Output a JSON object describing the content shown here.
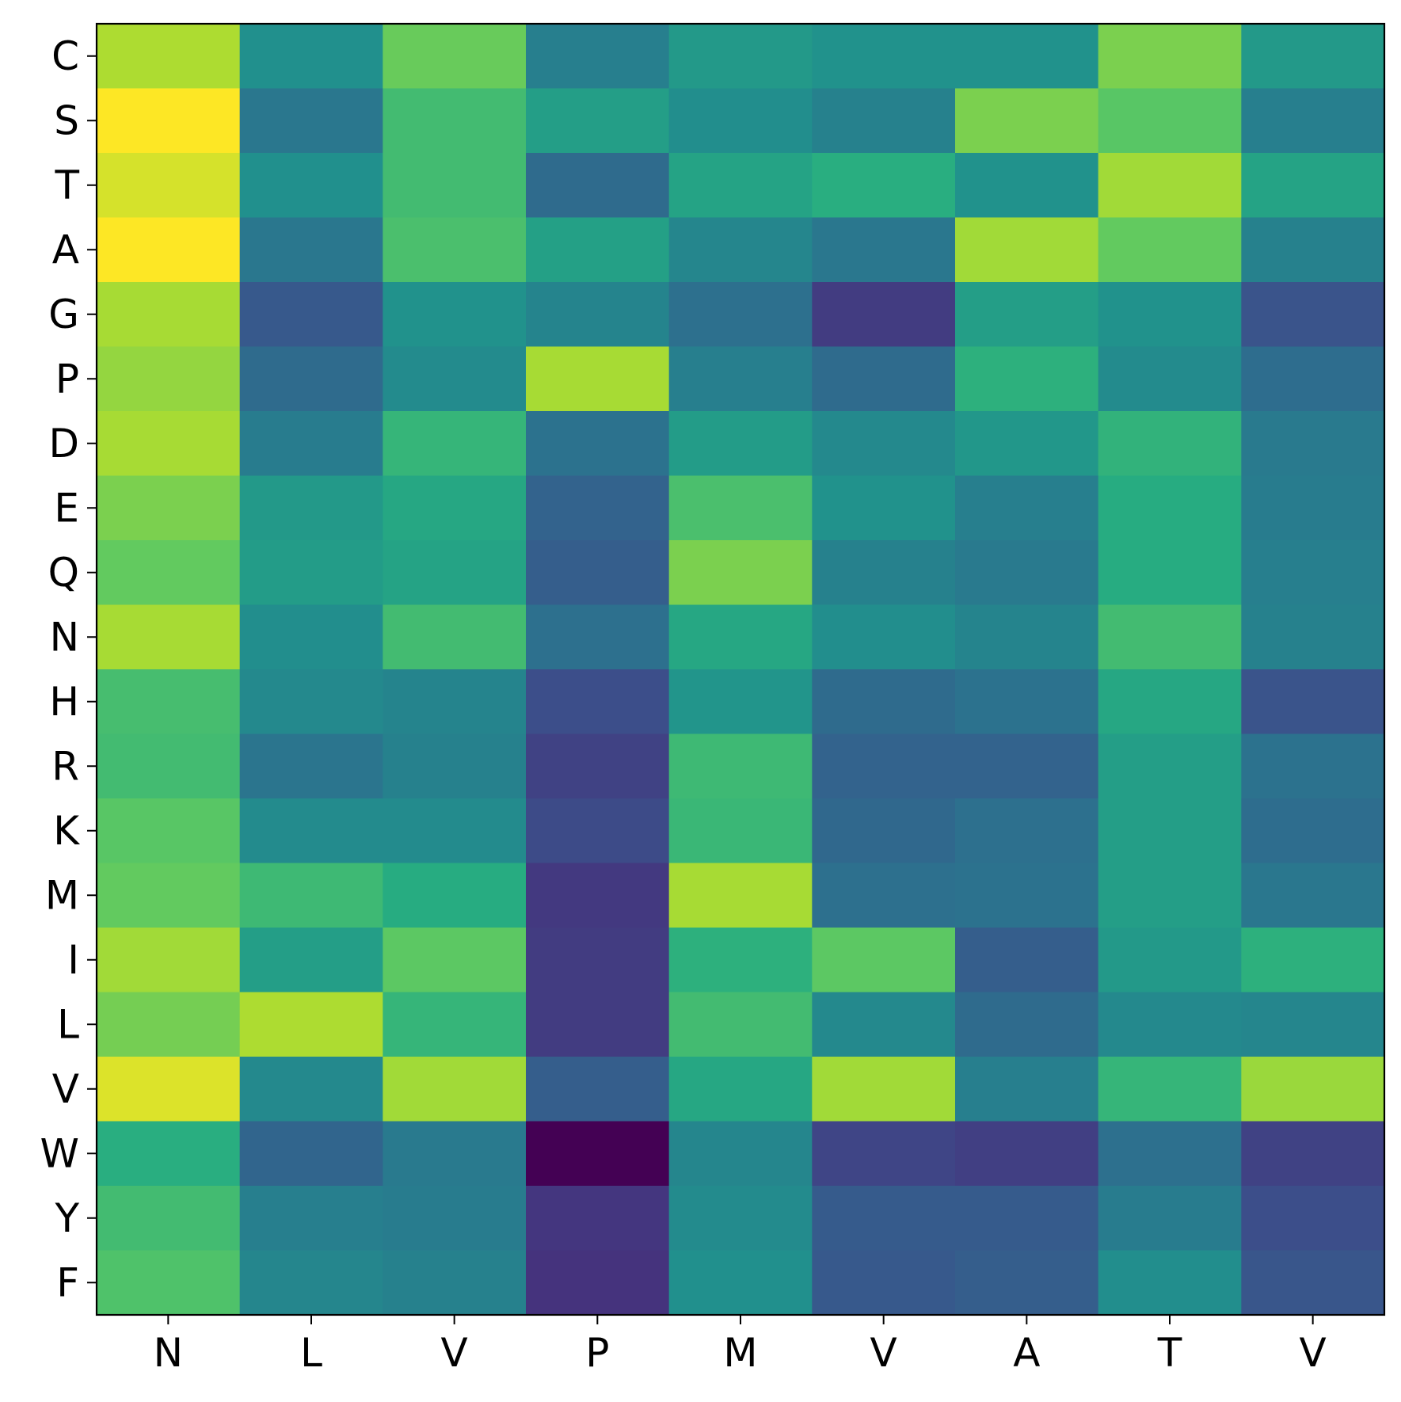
{
  "chart_data": {
    "type": "heatmap",
    "colormap": "viridis",
    "x_labels": [
      "N",
      "L",
      "V",
      "P",
      "M",
      "V",
      "A",
      "T",
      "V"
    ],
    "y_labels": [
      "C",
      "S",
      "T",
      "A",
      "G",
      "P",
      "D",
      "E",
      "Q",
      "N",
      "H",
      "R",
      "K",
      "M",
      "I",
      "L",
      "V",
      "W",
      "Y",
      "F"
    ],
    "value_scale": "normalized 0-1 (no colorbar shown)",
    "values": [
      [
        0.88,
        0.5,
        0.77,
        0.43,
        0.54,
        0.51,
        0.51,
        0.8,
        0.54
      ],
      [
        1.0,
        0.4,
        0.69,
        0.56,
        0.49,
        0.44,
        0.8,
        0.74,
        0.43
      ],
      [
        0.94,
        0.5,
        0.69,
        0.35,
        0.58,
        0.63,
        0.51,
        0.86,
        0.58
      ],
      [
        1.0,
        0.4,
        0.71,
        0.57,
        0.46,
        0.4,
        0.86,
        0.76,
        0.44
      ],
      [
        0.87,
        0.28,
        0.51,
        0.45,
        0.37,
        0.18,
        0.56,
        0.51,
        0.26
      ],
      [
        0.84,
        0.35,
        0.48,
        0.87,
        0.43,
        0.35,
        0.64,
        0.48,
        0.36
      ],
      [
        0.87,
        0.42,
        0.66,
        0.38,
        0.55,
        0.47,
        0.53,
        0.65,
        0.41
      ],
      [
        0.8,
        0.54,
        0.6,
        0.32,
        0.71,
        0.51,
        0.43,
        0.62,
        0.42
      ],
      [
        0.76,
        0.55,
        0.58,
        0.3,
        0.8,
        0.44,
        0.41,
        0.62,
        0.43
      ],
      [
        0.87,
        0.49,
        0.69,
        0.37,
        0.6,
        0.49,
        0.45,
        0.69,
        0.44
      ],
      [
        0.7,
        0.47,
        0.45,
        0.24,
        0.52,
        0.35,
        0.38,
        0.6,
        0.26
      ],
      [
        0.69,
        0.39,
        0.44,
        0.2,
        0.68,
        0.32,
        0.32,
        0.56,
        0.38
      ],
      [
        0.74,
        0.48,
        0.48,
        0.23,
        0.67,
        0.34,
        0.37,
        0.56,
        0.36
      ],
      [
        0.76,
        0.68,
        0.62,
        0.17,
        0.87,
        0.37,
        0.38,
        0.56,
        0.4
      ],
      [
        0.86,
        0.56,
        0.75,
        0.18,
        0.64,
        0.75,
        0.3,
        0.54,
        0.64
      ],
      [
        0.79,
        0.88,
        0.66,
        0.18,
        0.69,
        0.47,
        0.35,
        0.47,
        0.46
      ],
      [
        0.95,
        0.47,
        0.86,
        0.3,
        0.6,
        0.86,
        0.43,
        0.66,
        0.85
      ],
      [
        0.63,
        0.33,
        0.41,
        0.0,
        0.46,
        0.21,
        0.19,
        0.37,
        0.2
      ],
      [
        0.69,
        0.43,
        0.42,
        0.16,
        0.48,
        0.29,
        0.29,
        0.42,
        0.24
      ],
      [
        0.72,
        0.46,
        0.44,
        0.15,
        0.5,
        0.28,
        0.3,
        0.49,
        0.27
      ]
    ]
  }
}
